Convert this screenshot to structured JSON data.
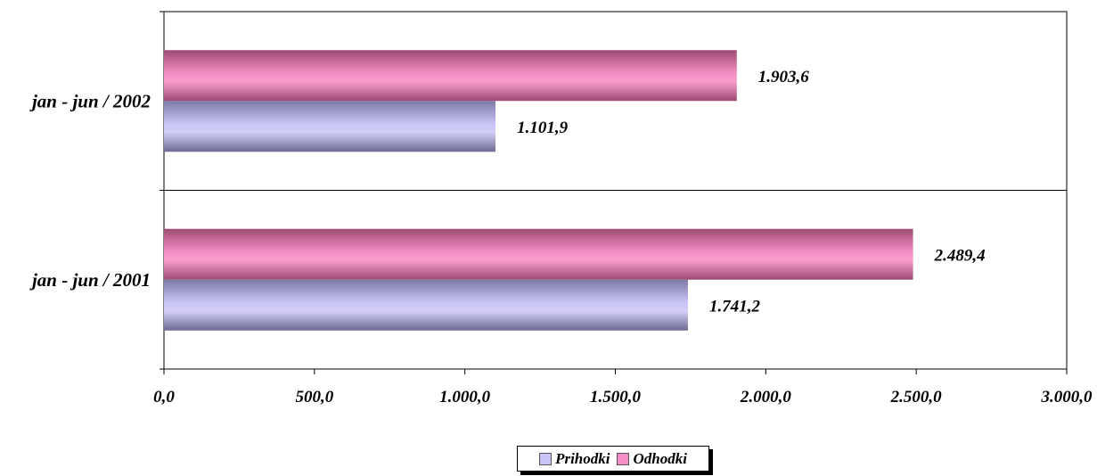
{
  "chart_data": {
    "type": "bar",
    "orientation": "horizontal",
    "categories": [
      "jan - jun / 2002",
      "jan - jun / 2001"
    ],
    "series": [
      {
        "name": "Prihodki",
        "values": [
          1101.9,
          1741.2
        ],
        "labels": [
          "1.101,9",
          "1.741,2"
        ],
        "color": "#c9c4f6"
      },
      {
        "name": "Odhodki",
        "values": [
          1903.6,
          2489.4
        ],
        "labels": [
          "1.903,6",
          "2.489,4"
        ],
        "color": "#f58ec4"
      }
    ],
    "xlim": [
      0,
      3000
    ],
    "xticks": [
      0,
      500,
      1000,
      1500,
      2000,
      2500,
      3000
    ],
    "xtick_labels": [
      "0,0",
      "500,0",
      "1.000,0",
      "1.500,0",
      "2.000,0",
      "2.500,0",
      "3.000,0"
    ],
    "legend": "bottom",
    "grid": false
  }
}
